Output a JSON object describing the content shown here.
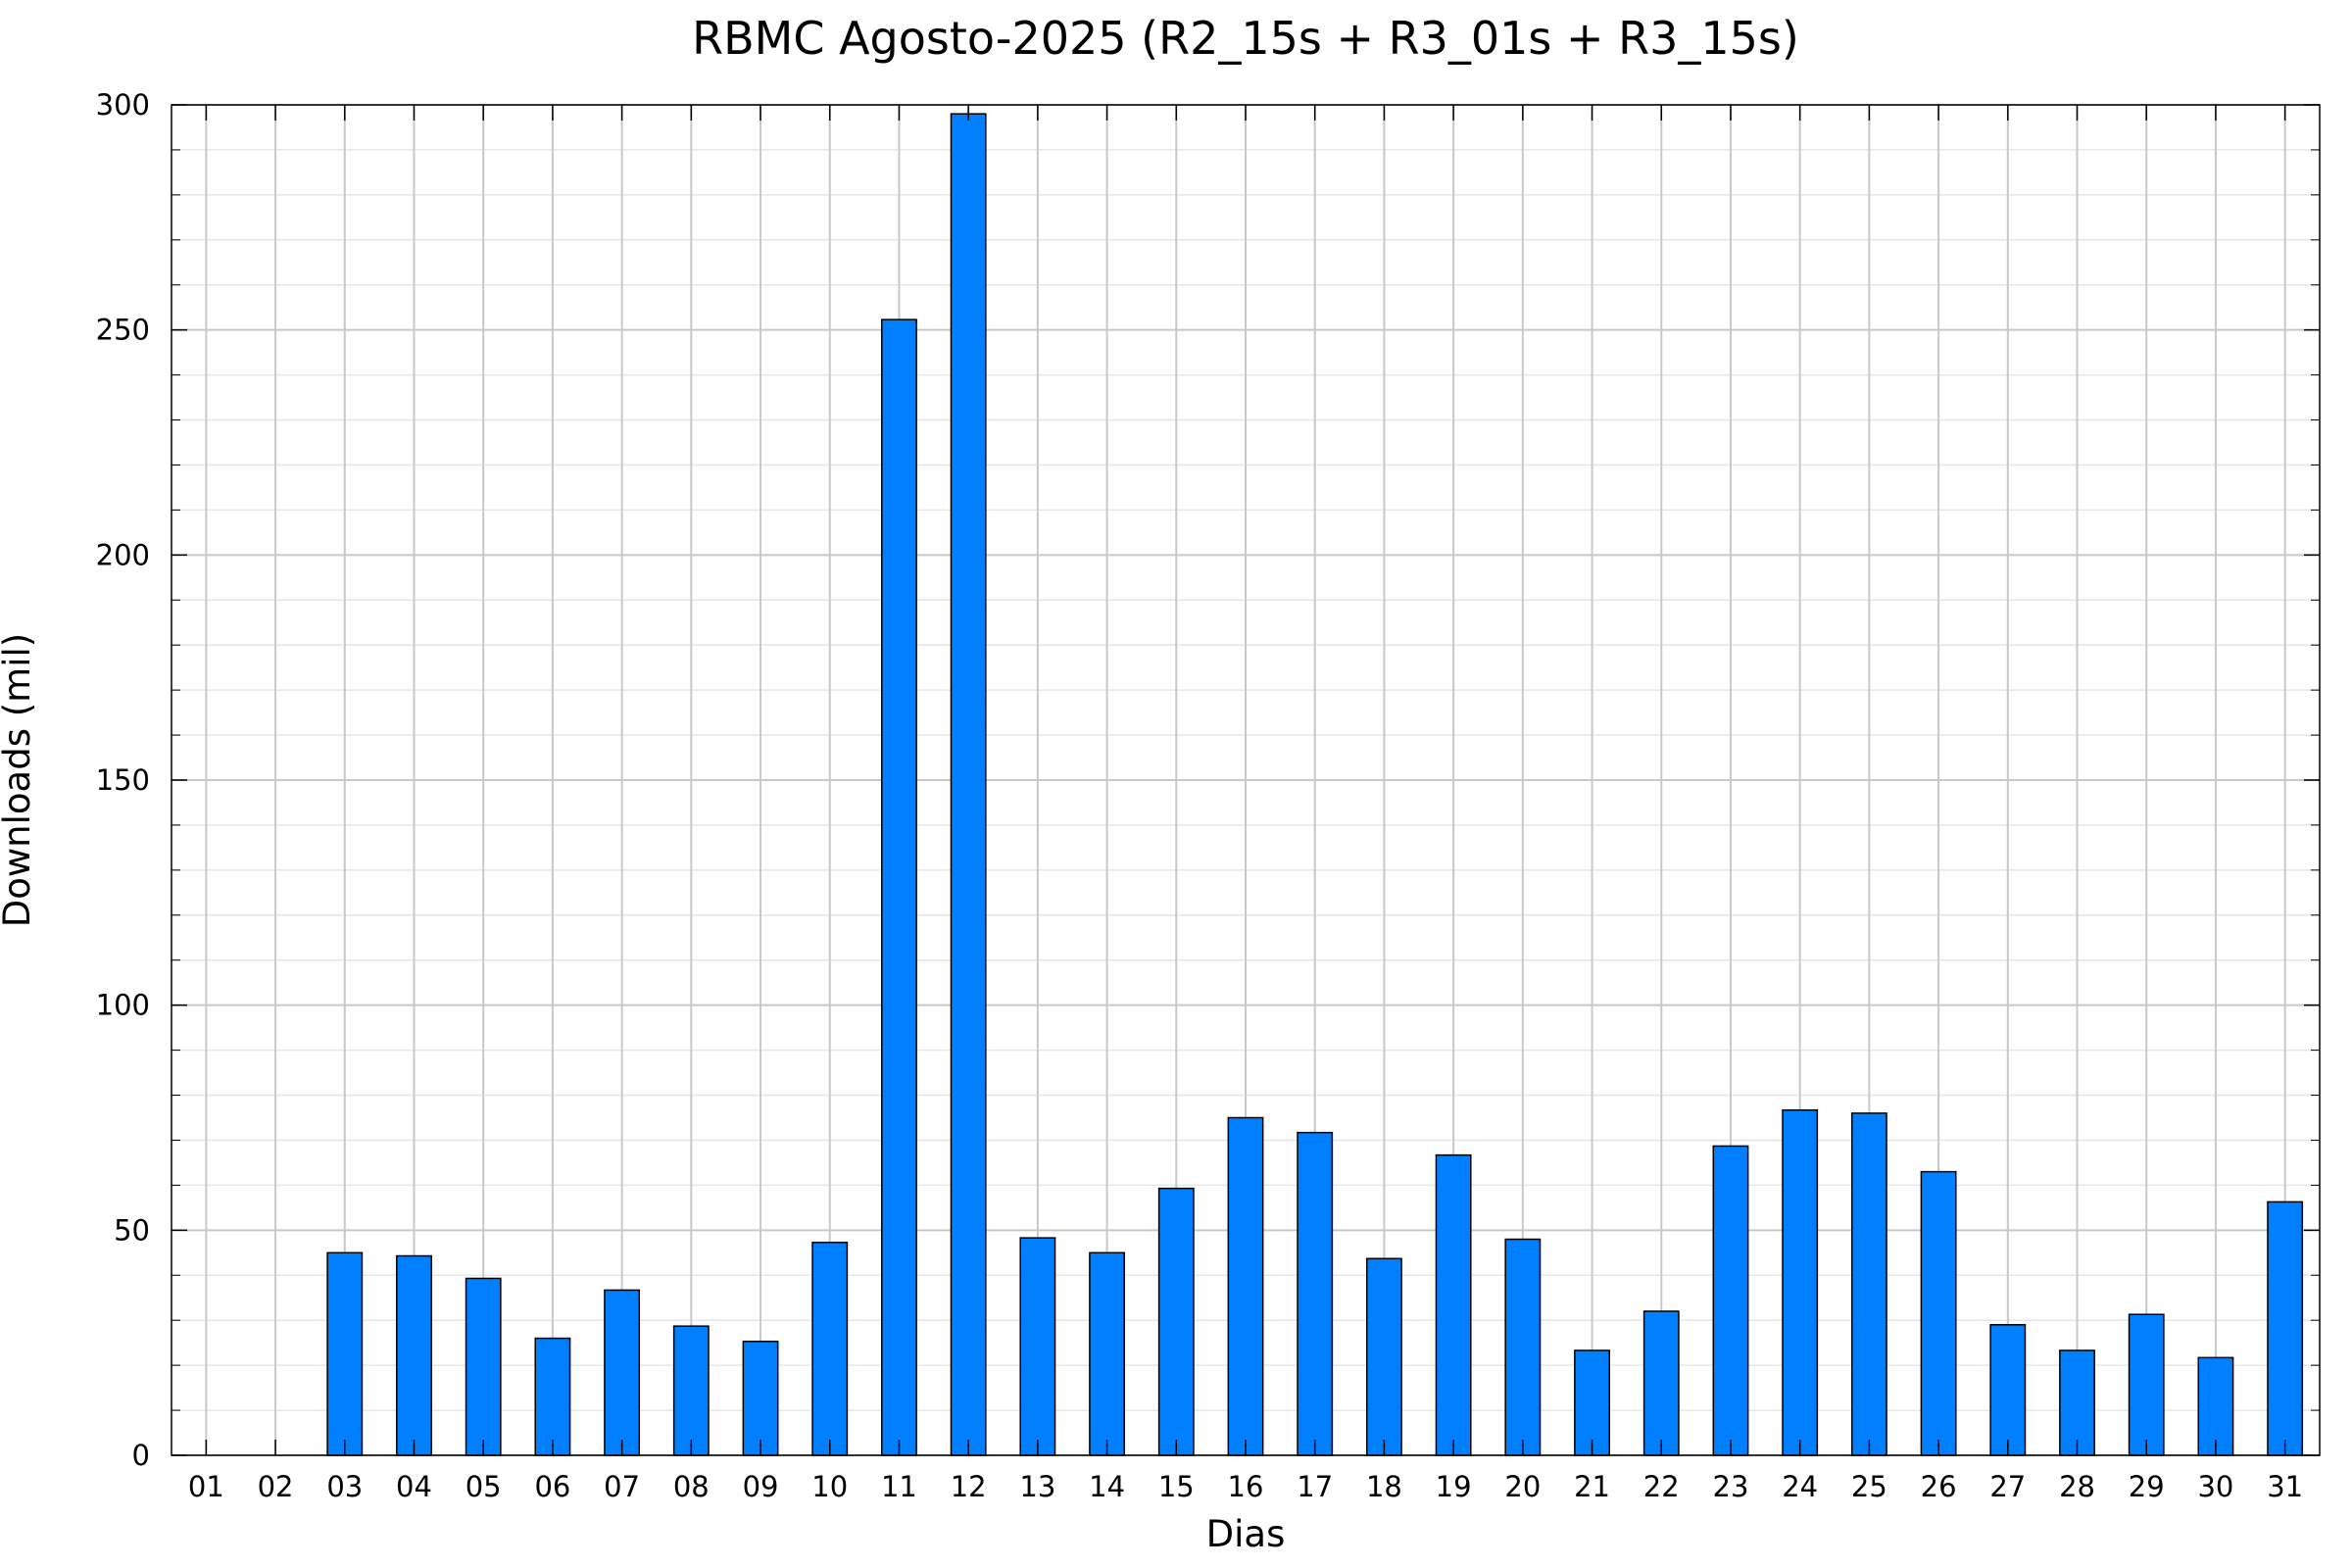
{
  "chart_data": {
    "type": "bar",
    "title": "RBMC Agosto-2025 (R2_15s + R3_01s + R3_15s)",
    "x_label": "Dias",
    "y_label": "Downloads (mil)",
    "categories": [
      "01",
      "02",
      "03",
      "04",
      "05",
      "06",
      "07",
      "08",
      "09",
      "10",
      "11",
      "12",
      "13",
      "14",
      "15",
      "16",
      "17",
      "18",
      "19",
      "20",
      "21",
      "22",
      "23",
      "24",
      "25",
      "26",
      "27",
      "28",
      "29",
      "30",
      "31"
    ],
    "values": [
      0,
      0,
      45,
      44.3,
      39.3,
      26,
      36.7,
      28.7,
      25.3,
      47.3,
      252.3,
      298,
      48.3,
      45,
      59.3,
      75,
      71.7,
      43.7,
      66.7,
      48,
      23.3,
      32,
      68.7,
      76.7,
      76,
      63,
      29,
      23.3,
      31.3,
      21.7,
      56.3
    ],
    "color": "#007fff",
    "ylim": [
      0,
      300
    ],
    "yticks": [
      0,
      50,
      100,
      150,
      200,
      250,
      300
    ],
    "minor_yticks": [
      10,
      20,
      30,
      40,
      60,
      70,
      80,
      90,
      110,
      120,
      130,
      140,
      160,
      170,
      180,
      190,
      210,
      220,
      230,
      240,
      260,
      270,
      280,
      290
    ],
    "grid": true
  }
}
